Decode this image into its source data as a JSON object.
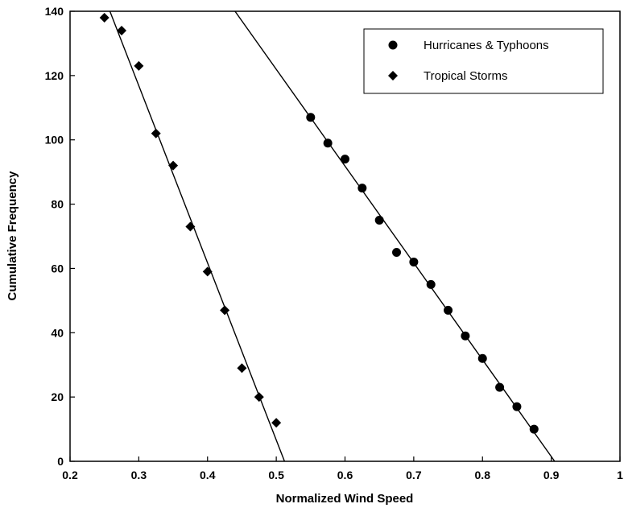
{
  "chart_data": {
    "type": "scatter",
    "xlabel": "Normalized Wind Speed",
    "ylabel": "Cumulative Frequency",
    "xlim": [
      0.2,
      1
    ],
    "ylim": [
      0,
      140
    ],
    "x_ticks": [
      0.2,
      0.3,
      0.4,
      0.5,
      0.6,
      0.7,
      0.8,
      0.9,
      1
    ],
    "x_tick_labels": [
      "0.2",
      "0.3",
      "0.4",
      "0.5",
      "0.6",
      "0.7",
      "0.8",
      "0.9",
      "1"
    ],
    "y_ticks": [
      0,
      20,
      40,
      60,
      80,
      100,
      120,
      140
    ],
    "y_tick_labels": [
      "0",
      "20",
      "40",
      "60",
      "80",
      "100",
      "120",
      "140"
    ],
    "grid": false,
    "legend_position": "top-right",
    "series": [
      {
        "name": "Hurricanes & Typhoons",
        "marker": "circle",
        "color": "#000000",
        "x": [
          0.55,
          0.575,
          0.6,
          0.625,
          0.65,
          0.675,
          0.7,
          0.725,
          0.75,
          0.775,
          0.8,
          0.825,
          0.85,
          0.875
        ],
        "y": [
          107,
          99,
          94,
          85,
          75,
          65,
          62,
          55,
          47,
          39,
          32,
          23,
          17,
          10
        ],
        "fit_line": {
          "x": [
            0.44,
            0.905
          ],
          "y": [
            140,
            0
          ]
        }
      },
      {
        "name": "Tropical Storms",
        "marker": "diamond",
        "color": "#000000",
        "x": [
          0.25,
          0.275,
          0.3,
          0.325,
          0.35,
          0.375,
          0.4,
          0.425,
          0.45,
          0.475,
          0.5
        ],
        "y": [
          138,
          134,
          123,
          102,
          92,
          73,
          59,
          47,
          29,
          20,
          12
        ],
        "fit_line": {
          "x": [
            0.258,
            0.512
          ],
          "y": [
            140,
            0
          ]
        }
      }
    ]
  }
}
